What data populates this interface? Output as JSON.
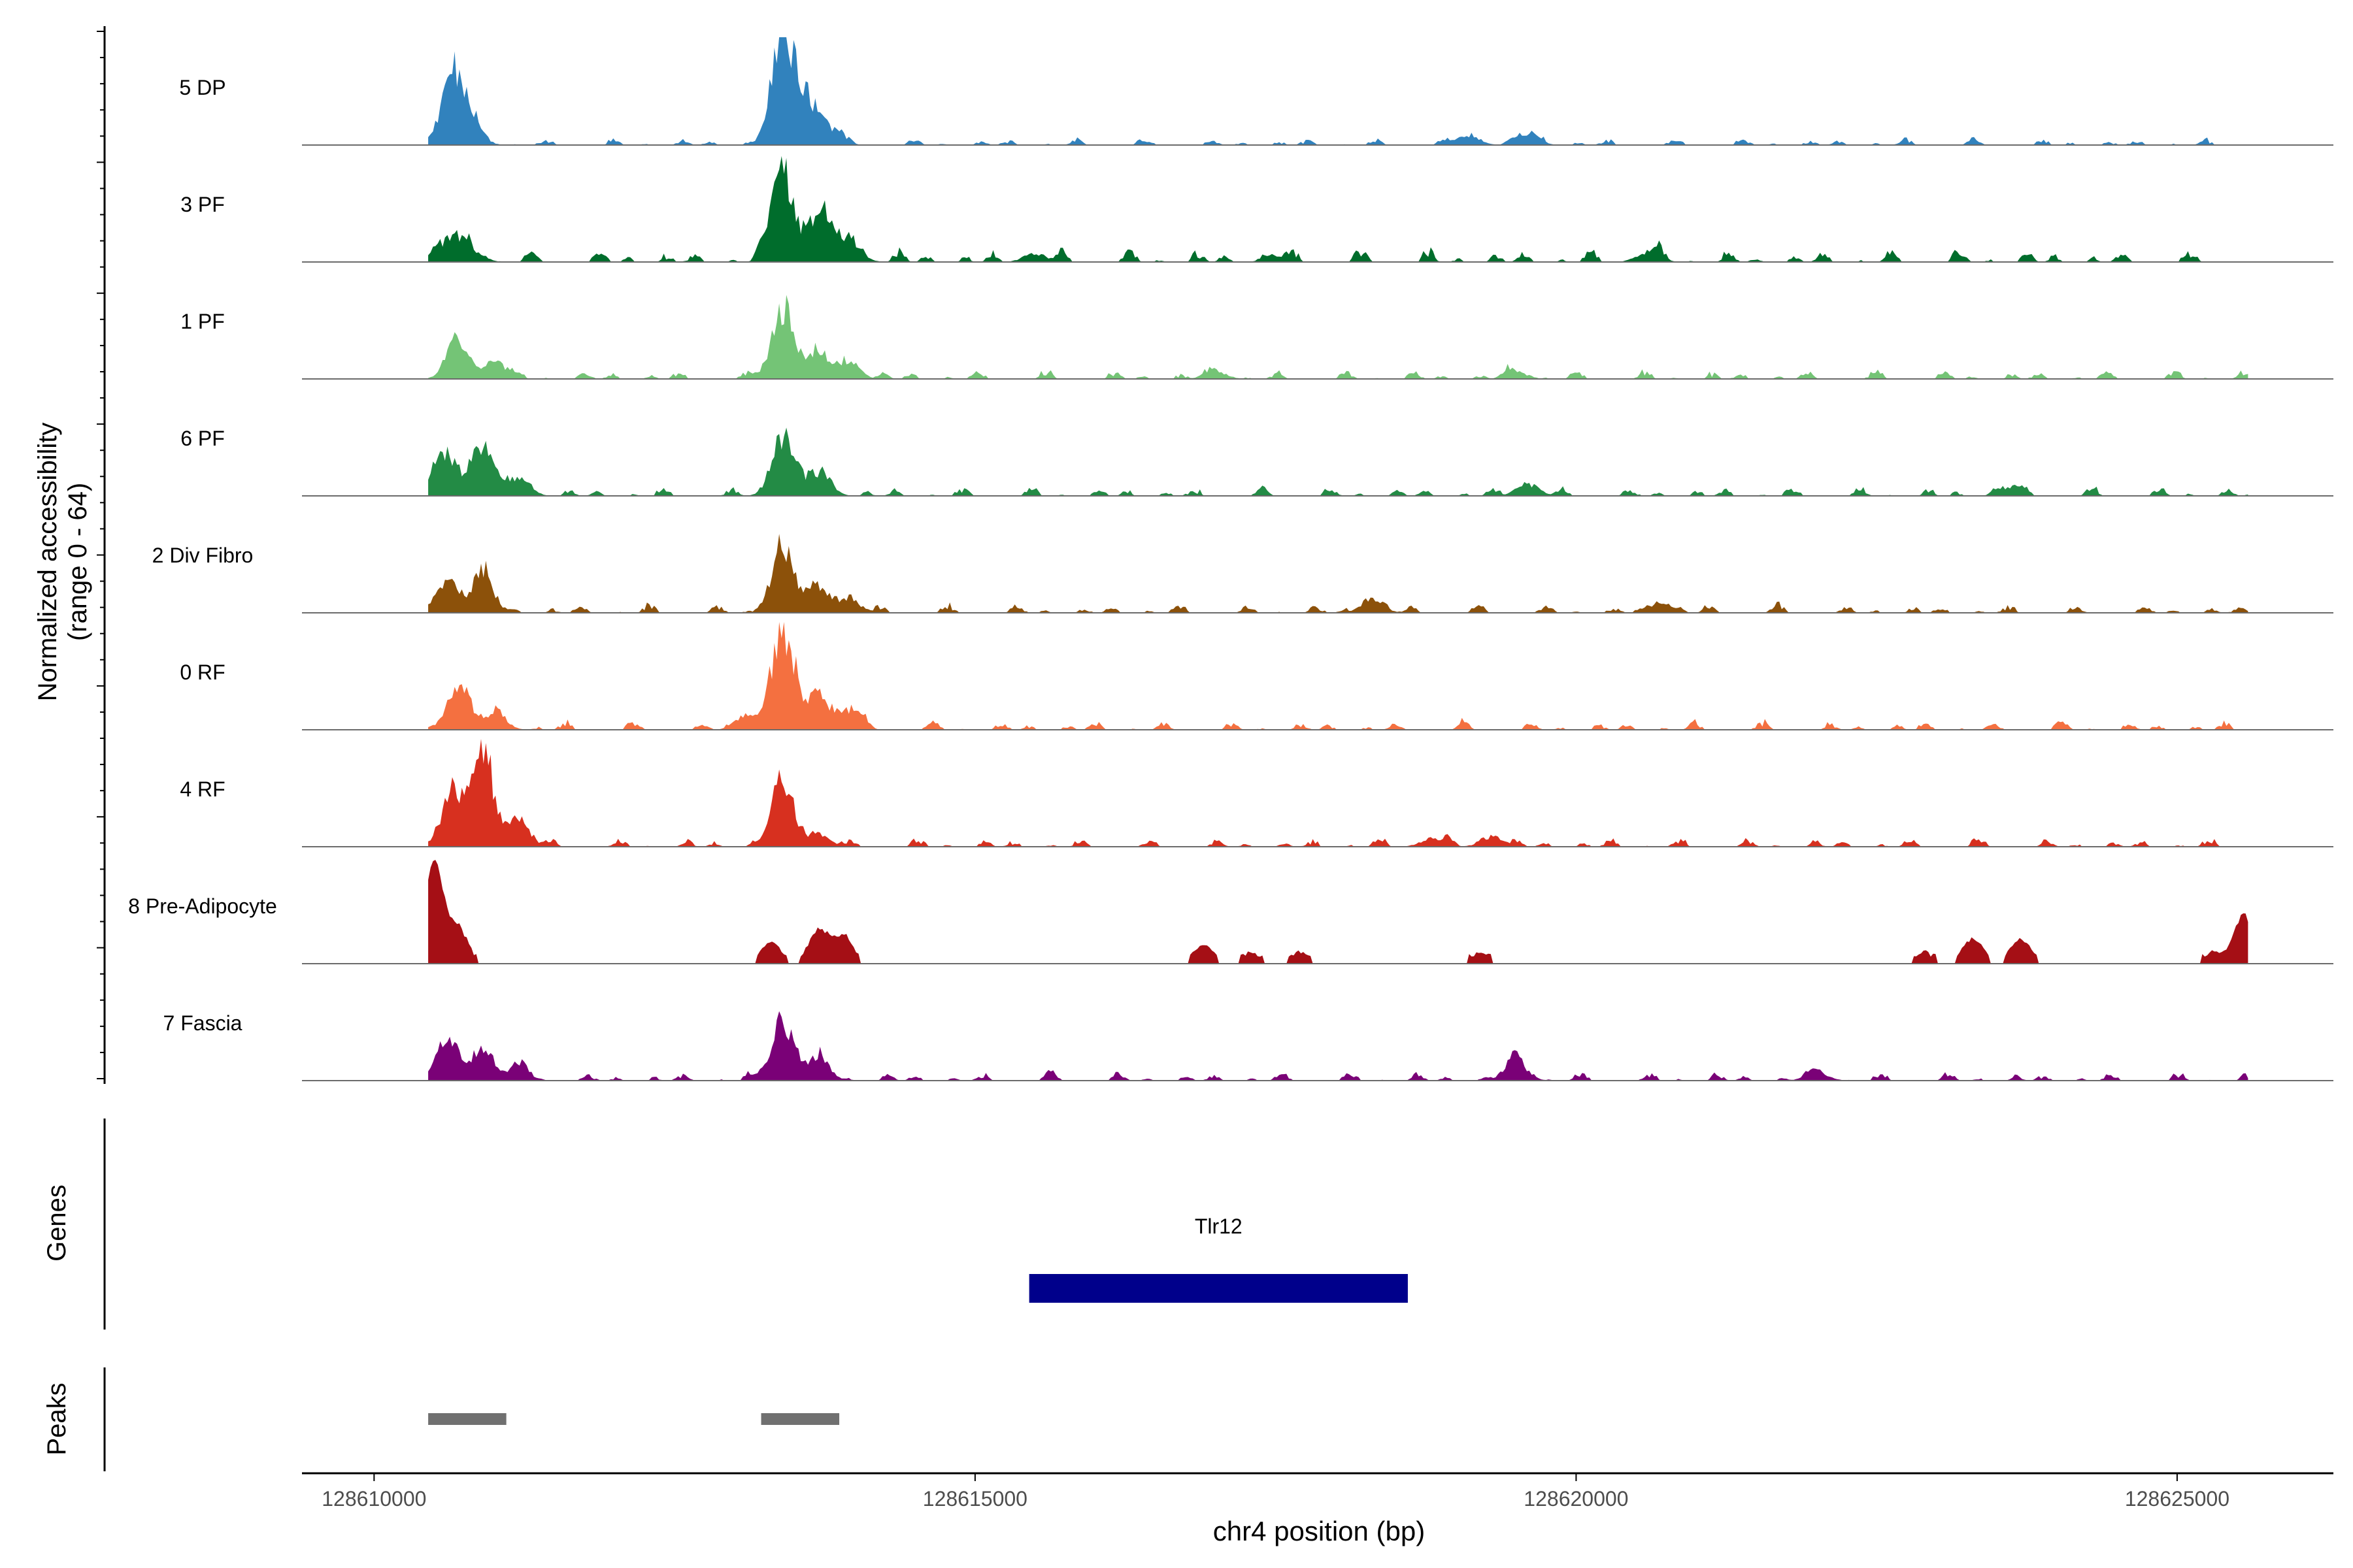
{
  "chart_data": {
    "type": "area",
    "title": "",
    "chromosome": "chr4",
    "xlabel": "chr4 position (bp)",
    "ylabel": "Normalized accessibility",
    "ylabel_range": "(range 0 - 64)",
    "ylim": [
      0,
      64
    ],
    "xlim": [
      128609400,
      128626300
    ],
    "x_ticks": [
      128610000,
      128615000,
      128620000,
      128625000
    ],
    "x_tick_labels": [
      "128610000",
      "128615000",
      "128620000",
      "128625000"
    ],
    "tracks": [
      {
        "name": "5 DP",
        "color": "#3182bd",
        "peaks": [
          [
            128610650,
            40
          ],
          [
            128610800,
            14
          ],
          [
            128613400,
            64
          ],
          [
            128613600,
            25
          ],
          [
            128613800,
            8
          ],
          [
            128619100,
            6
          ],
          [
            128619600,
            7
          ]
        ],
        "noise": 3
      },
      {
        "name": "3 PF",
        "color": "#006d2c",
        "peaks": [
          [
            128610600,
            12
          ],
          [
            128610800,
            8
          ],
          [
            128613400,
            52
          ],
          [
            128613700,
            30
          ],
          [
            128613950,
            14
          ],
          [
            128615500,
            5
          ],
          [
            128617500,
            4
          ],
          [
            128620600,
            6
          ]
        ],
        "noise": 6
      },
      {
        "name": "1 PF",
        "color": "#74c476",
        "peaks": [
          [
            128610700,
            22
          ],
          [
            128611000,
            10
          ],
          [
            128613400,
            42
          ],
          [
            128613700,
            15
          ],
          [
            128613950,
            10
          ],
          [
            128617000,
            4
          ],
          [
            128619500,
            4
          ]
        ],
        "noise": 4
      },
      {
        "name": "6 PF",
        "color": "#238b45",
        "peaks": [
          [
            128610600,
            24
          ],
          [
            128610900,
            32
          ],
          [
            128611200,
            10
          ],
          [
            128613400,
            34
          ],
          [
            128613700,
            14
          ],
          [
            128619600,
            7
          ],
          [
            128623600,
            5
          ]
        ],
        "noise": 4
      },
      {
        "name": "2 Div Fibro",
        "color": "#8c510a",
        "peaks": [
          [
            128610600,
            20
          ],
          [
            128610900,
            22
          ],
          [
            128613400,
            40
          ],
          [
            128613700,
            14
          ],
          [
            128613950,
            8
          ],
          [
            128618300,
            8
          ],
          [
            128620700,
            6
          ]
        ],
        "noise": 4
      },
      {
        "name": "0 RF",
        "color": "#f47040",
        "peaks": [
          [
            128610700,
            24
          ],
          [
            128611000,
            10
          ],
          [
            128613100,
            8
          ],
          [
            128613400,
            60
          ],
          [
            128613700,
            20
          ],
          [
            128613950,
            12
          ]
        ],
        "noise": 4
      },
      {
        "name": "4 RF",
        "color": "#d7301f",
        "peaks": [
          [
            128610650,
            30
          ],
          [
            128610900,
            56
          ],
          [
            128611200,
            16
          ],
          [
            128613400,
            38
          ],
          [
            128613700,
            8
          ],
          [
            128618800,
            5
          ],
          [
            128619300,
            6
          ]
        ],
        "noise": 4
      },
      {
        "name": "8 Pre-Adipocyte",
        "color": "#a50f15",
        "peaks": [
          [
            128610500,
            60
          ],
          [
            128610700,
            20
          ],
          [
            128613300,
            12
          ],
          [
            128613700,
            20
          ],
          [
            128613900,
            16
          ],
          [
            128616900,
            10
          ],
          [
            128617300,
            6
          ],
          [
            128617700,
            6
          ],
          [
            128619200,
            6
          ],
          [
            128622900,
            6
          ],
          [
            128623300,
            14
          ],
          [
            128623700,
            14
          ],
          [
            128625300,
            6
          ],
          [
            128625550,
            28
          ]
        ],
        "noise": 0
      },
      {
        "name": "7 Fascia",
        "color": "#7a0177",
        "peaks": [
          [
            128610600,
            22
          ],
          [
            128610900,
            20
          ],
          [
            128611200,
            8
          ],
          [
            128613400,
            36
          ],
          [
            128613700,
            12
          ],
          [
            128619500,
            12
          ],
          [
            128622000,
            5
          ]
        ],
        "noise": 4
      }
    ],
    "genes": [
      {
        "name": "Tlr12",
        "start": 128615450,
        "end": 128618600,
        "color": "#00008b"
      }
    ],
    "peaks_track": [
      {
        "start": 128610450,
        "end": 128611100,
        "color": "#707070"
      },
      {
        "start": 128613220,
        "end": 128613870,
        "color": "#707070"
      }
    ],
    "panels": {
      "genes_label": "Genes",
      "peaks_label": "Peaks"
    }
  }
}
